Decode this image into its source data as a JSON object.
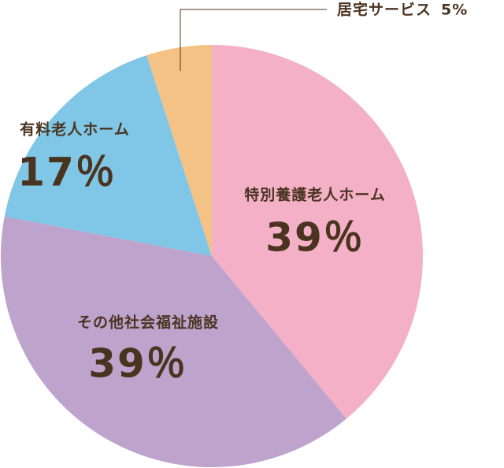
{
  "chart_data": {
    "type": "pie",
    "categories": [
      "特別養護老人ホーム",
      "その他社会福祉施設",
      "有料老人ホーム",
      "居宅サービス"
    ],
    "values": [
      39,
      39,
      17,
      5
    ],
    "value_labels": [
      "39％",
      "39％",
      "17％",
      "5%"
    ],
    "colors": [
      "#f4b0c6",
      "#bea3cc",
      "#80c6e6",
      "#f5c285"
    ]
  }
}
